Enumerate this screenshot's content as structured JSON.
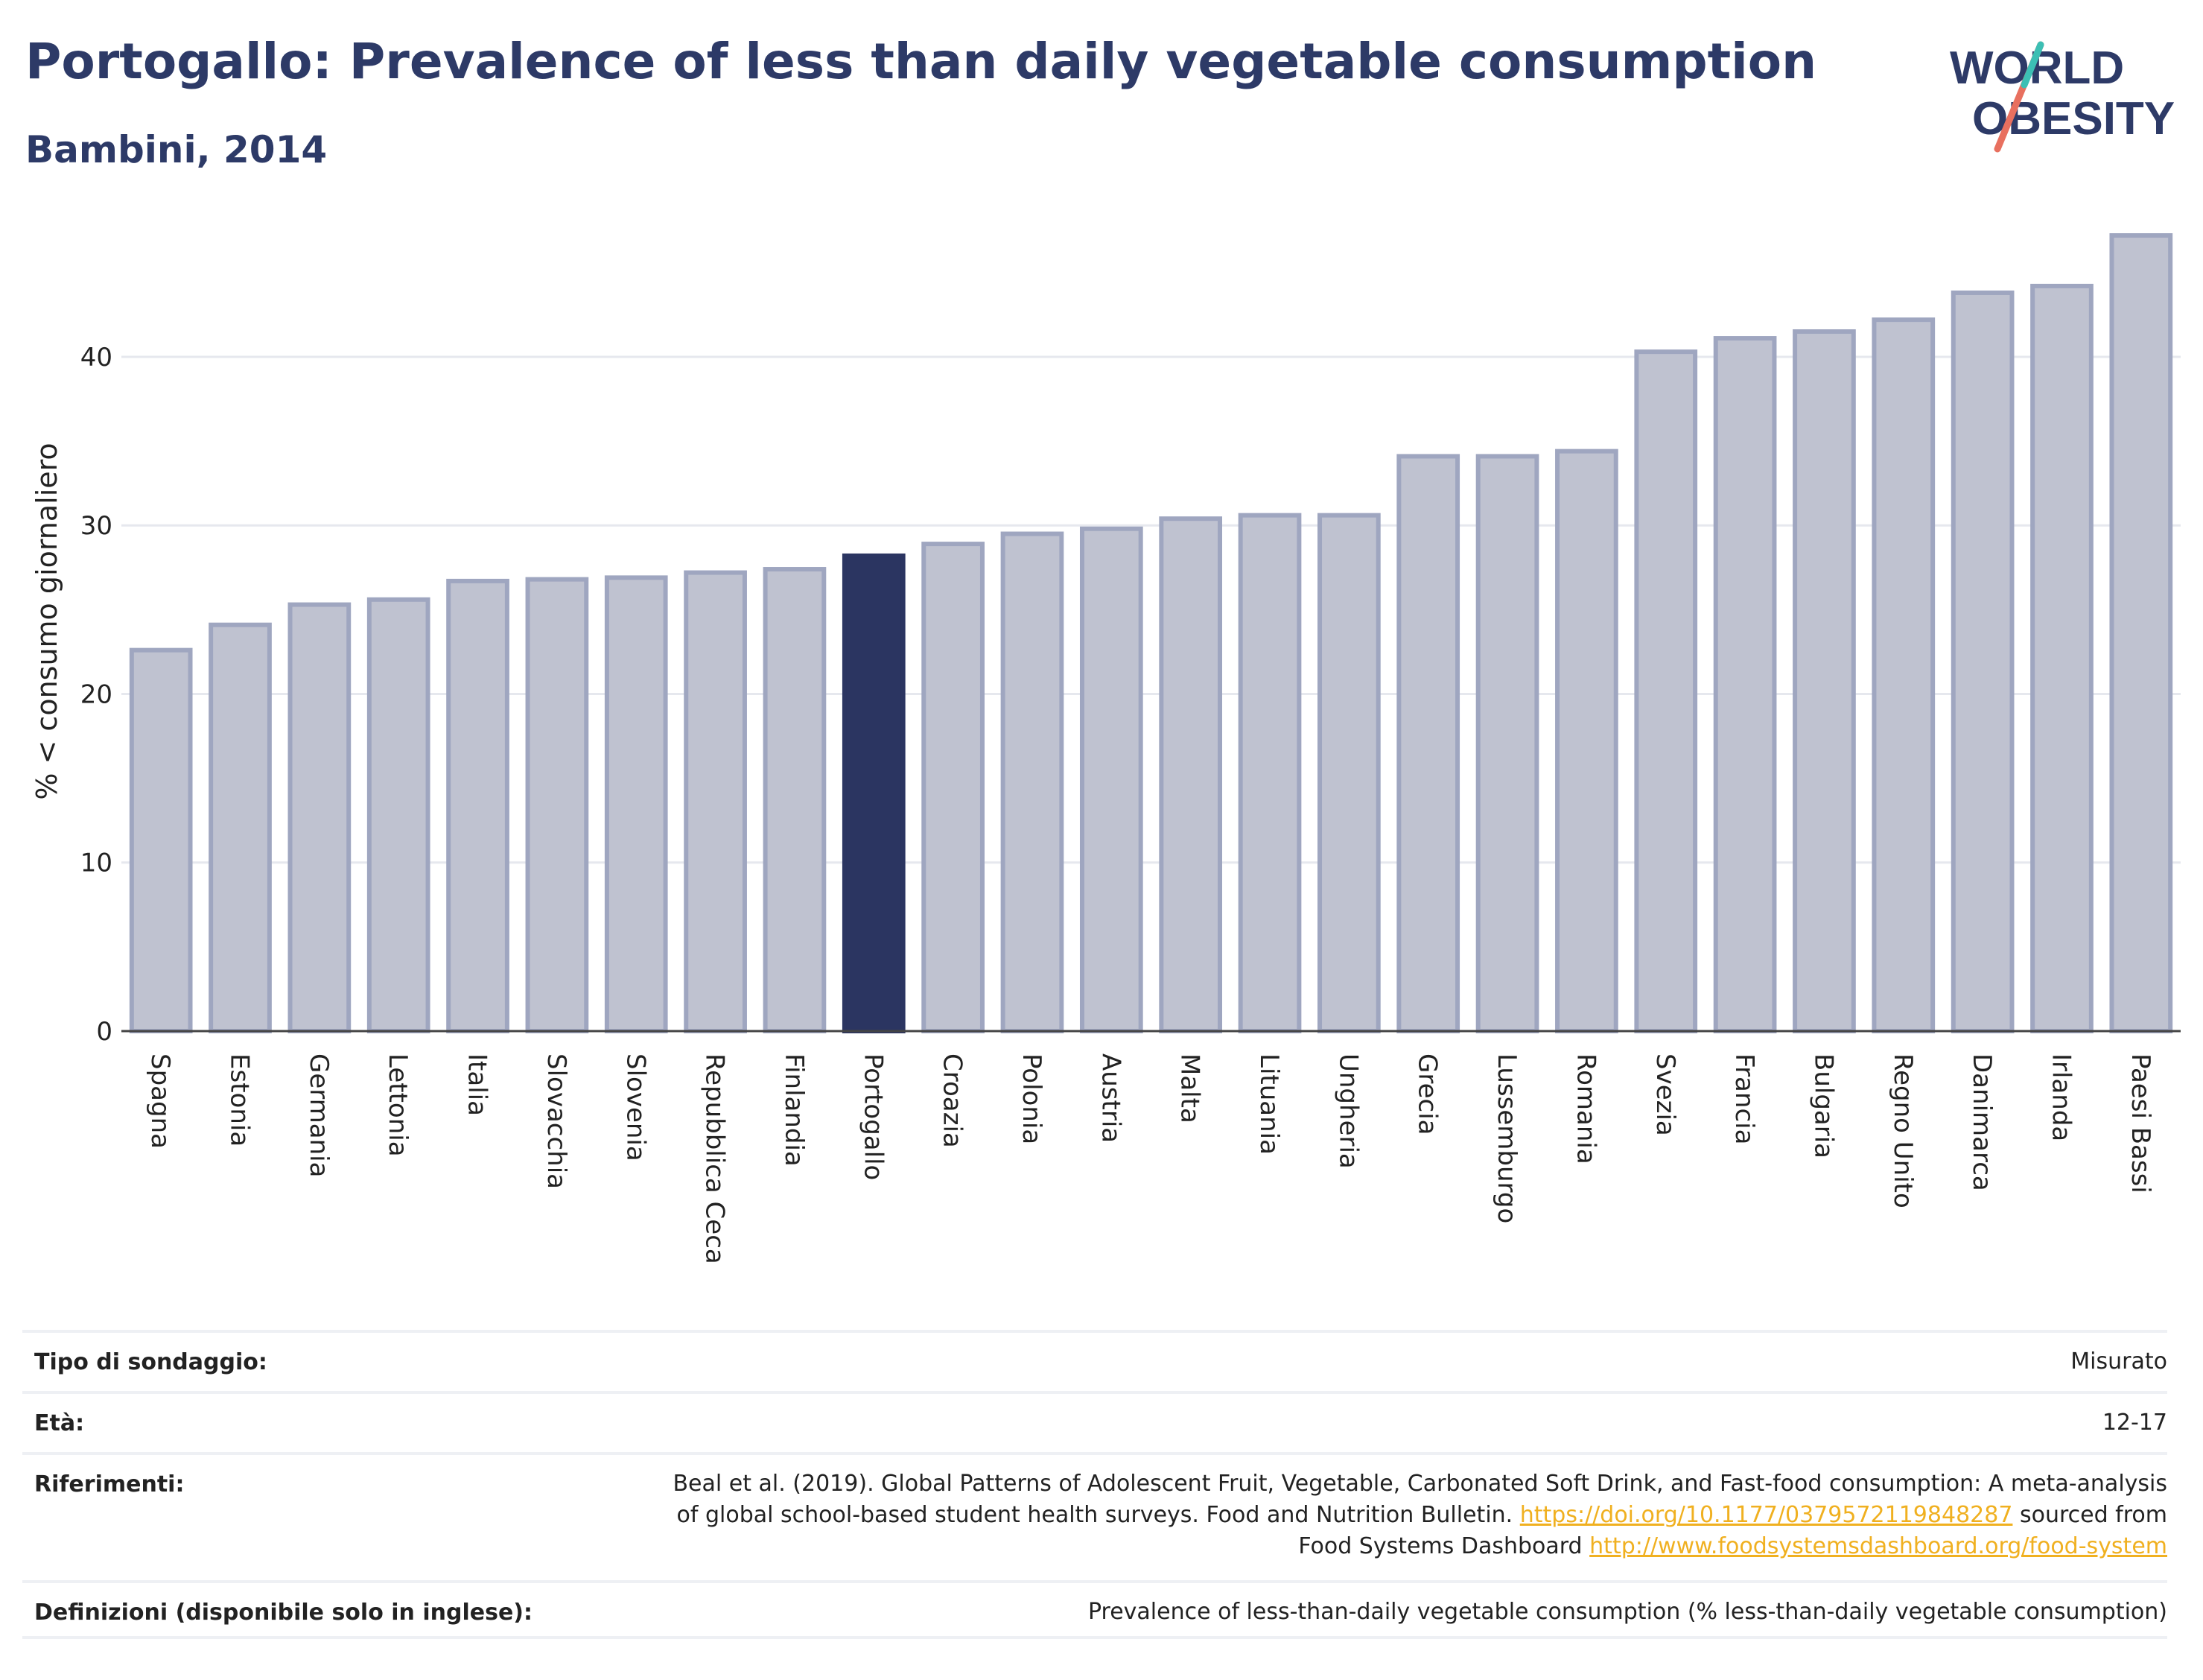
{
  "header": {
    "title": "Portogallo: Prevalence of less than daily vegetable consumption",
    "subtitle": "Bambini, 2014"
  },
  "logo": {
    "line1": "WORLD",
    "line2": "OBESITY"
  },
  "chart_data": {
    "type": "bar",
    "categories": [
      "Spagna",
      "Estonia",
      "Germania",
      "Lettonia",
      "Italia",
      "Slovacchia",
      "Slovenia",
      "Repubblica Ceca",
      "Finlandia",
      "Portogallo",
      "Croazia",
      "Polonia",
      "Austria",
      "Malta",
      "Lituania",
      "Ungheria",
      "Grecia",
      "Lussemburgo",
      "Romania",
      "Svezia",
      "Francia",
      "Bulgaria",
      "Regno Unito",
      "Danimarca",
      "Irlanda",
      "Paesi Bassi"
    ],
    "values": [
      22.6,
      24.1,
      25.3,
      25.6,
      26.7,
      26.8,
      26.9,
      27.2,
      27.4,
      28.2,
      28.9,
      29.5,
      29.8,
      30.4,
      30.6,
      30.6,
      34.1,
      34.1,
      34.4,
      40.3,
      41.1,
      41.5,
      42.2,
      43.8,
      44.2,
      47.2
    ],
    "highlight": "Portogallo",
    "ylabel": "% < consumo giornaliero",
    "yticks": [
      0,
      10,
      20,
      30,
      40
    ],
    "ylim": [
      0,
      49.5
    ],
    "colors": {
      "bar": "#bfc2d0",
      "bar_border": "#9fa6c0",
      "highlight": "#2b3561"
    }
  },
  "info": {
    "survey_label": "Tipo di sondaggio:",
    "survey_value": "Misurato",
    "age_label": "Età:",
    "age_value": "12-17",
    "refs_label": "Riferimenti:",
    "refs_text_1": "Beal et al. (2019). Global Patterns of Adolescent Fruit, Vegetable, Carbonated Soft Drink, and Fast-food consumption: A meta-analysis",
    "refs_text_2": "of global school-based student health surveys. Food and Nutrition Bulletin.",
    "refs_link_1": "https://doi.org/10.1177/0379572119848287",
    "refs_text_3": "sourced from",
    "refs_text_4": "Food Systems Dashboard",
    "refs_link_2": "http://www.foodsystemsdashboard.org/food-system",
    "def_label": "Definizioni (disponibile solo in inglese):",
    "def_value": "Prevalence of less-than-daily vegetable consumption (% less-than-daily vegetable consumption)"
  }
}
